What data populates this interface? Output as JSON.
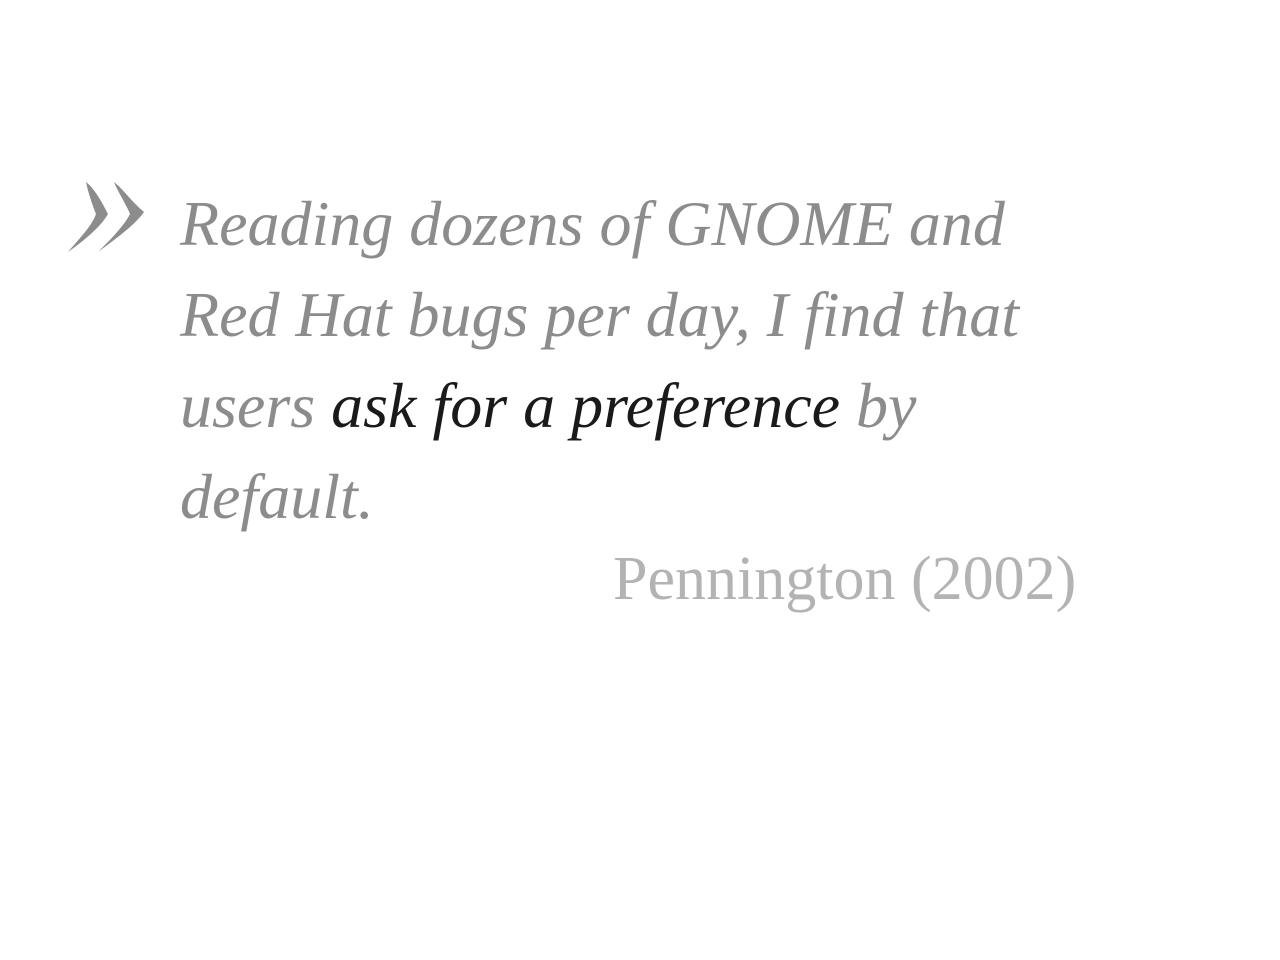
{
  "quote": {
    "line1": "Reading dozens of GNOME and",
    "line2": "Red Hat bugs per day, I find that",
    "line3_before": "users ",
    "line3_emphasis": "ask for a preference",
    "line3_after": " by",
    "line4": "default."
  },
  "attribution": "Pennington (2002)",
  "icons": {
    "quote_mark": "double-chevron-quote-icon"
  },
  "colors": {
    "quote_text": "#8c8c8c",
    "emphasis_text": "#1a1a1a",
    "attribution_text": "#b3b3b3",
    "quote_mark": "#8c8c8c"
  }
}
